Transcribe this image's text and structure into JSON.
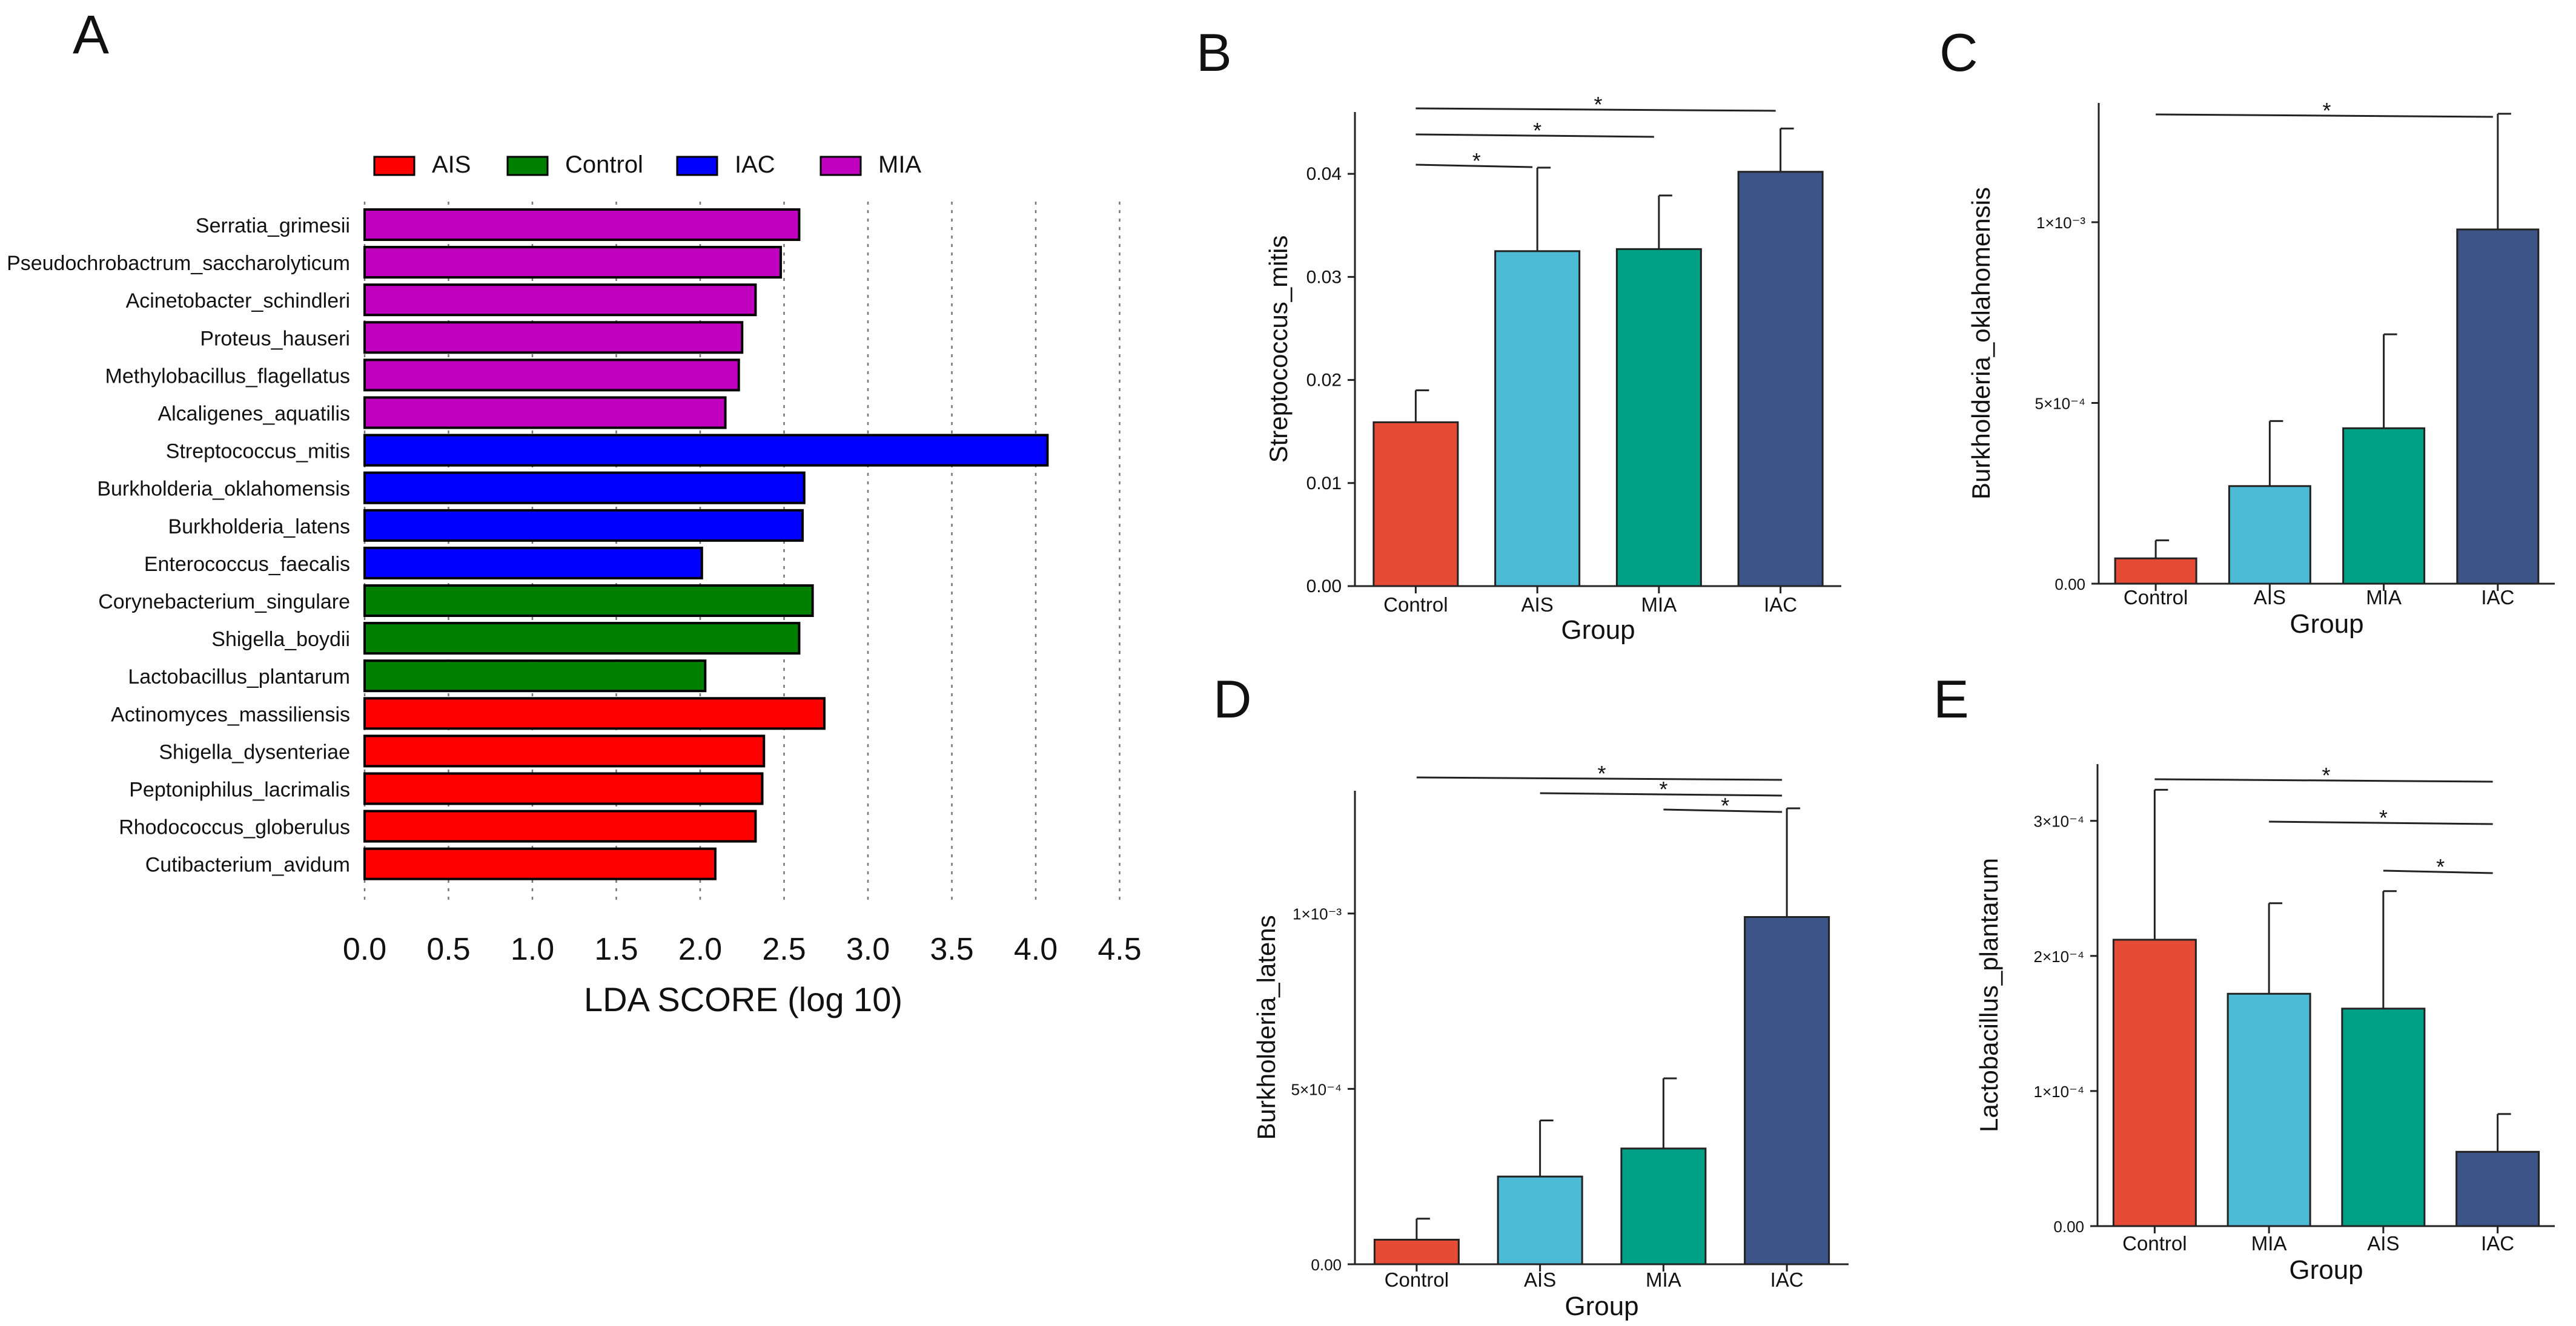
{
  "chart_data": [
    {
      "id": "A",
      "type": "bar",
      "orientation": "horizontal",
      "panel_label": "A",
      "xlabel": "LDA SCORE (log 10)",
      "xlim": [
        0,
        4.5
      ],
      "xticks": [
        "0.0",
        "0.5",
        "1.0",
        "1.5",
        "2.0",
        "2.5",
        "3.0",
        "3.5",
        "4.0",
        "4.5"
      ],
      "legend": [
        {
          "name": "AIS",
          "color": "#ff0000"
        },
        {
          "name": "Control",
          "color": "#008000"
        },
        {
          "name": "IAC",
          "color": "#0000ff"
        },
        {
          "name": "MIA",
          "color": "#bf00bf"
        }
      ],
      "bars": [
        {
          "label": "Serratia_grimesii",
          "value": 2.59,
          "group": "MIA"
        },
        {
          "label": "Pseudochrobactrum_saccharolyticum",
          "value": 2.48,
          "group": "MIA"
        },
        {
          "label": "Acinetobacter_schindleri",
          "value": 2.33,
          "group": "MIA"
        },
        {
          "label": "Proteus_hauseri",
          "value": 2.25,
          "group": "MIA"
        },
        {
          "label": "Methylobacillus_flagellatus",
          "value": 2.23,
          "group": "MIA"
        },
        {
          "label": "Alcaligenes_aquatilis",
          "value": 2.15,
          "group": "MIA"
        },
        {
          "label": "Streptococcus_mitis",
          "value": 4.07,
          "group": "IAC"
        },
        {
          "label": "Burkholderia_oklahomensis",
          "value": 2.62,
          "group": "IAC"
        },
        {
          "label": "Burkholderia_latens",
          "value": 2.61,
          "group": "IAC"
        },
        {
          "label": "Enterococcus_faecalis",
          "value": 2.01,
          "group": "IAC"
        },
        {
          "label": "Corynebacterium_singulare",
          "value": 2.67,
          "group": "Control"
        },
        {
          "label": "Shigella_boydii",
          "value": 2.59,
          "group": "Control"
        },
        {
          "label": "Lactobacillus_plantarum",
          "value": 2.03,
          "group": "Control"
        },
        {
          "label": "Actinomyces_massiliensis",
          "value": 2.74,
          "group": "AIS"
        },
        {
          "label": "Shigella_dysenteriae",
          "value": 2.38,
          "group": "AIS"
        },
        {
          "label": "Peptoniphilus_lacrimalis",
          "value": 2.37,
          "group": "AIS"
        },
        {
          "label": "Rhodococcus_globerulus",
          "value": 2.33,
          "group": "AIS"
        },
        {
          "label": "Cutibacterium_avidum",
          "value": 2.09,
          "group": "AIS"
        }
      ]
    },
    {
      "id": "B",
      "type": "bar",
      "panel_label": "B",
      "ylabel": "Streptococcus_mitis",
      "xlabel": "Group",
      "categories": [
        "Control",
        "AIS",
        "MIA",
        "IAC"
      ],
      "values": [
        0.0159,
        0.0325,
        0.0327,
        0.0402
      ],
      "errors": [
        0.0031,
        0.0081,
        0.0052,
        0.0042
      ],
      "ylim": [
        0,
        0.046
      ],
      "yticks": [
        0,
        0.01,
        0.02,
        0.03,
        0.04
      ],
      "ytick_labels": [
        "0.00",
        "0.01",
        "0.02",
        "0.03",
        "0.04"
      ],
      "significance": [
        {
          "from": 0,
          "to": 1,
          "label": "*"
        },
        {
          "from": 0,
          "to": 2,
          "label": "*"
        },
        {
          "from": 0,
          "to": 3,
          "label": "*"
        }
      ]
    },
    {
      "id": "C",
      "type": "bar",
      "panel_label": "C",
      "ylabel": "Burkholderia_oklahomensis",
      "xlabel": "Group",
      "categories": [
        "Control",
        "AIS",
        "MIA",
        "IAC"
      ],
      "values": [
        7e-05,
        0.00027,
        0.00043,
        0.00098
      ],
      "errors": [
        5e-05,
        0.00018,
        0.00026,
        0.00032
      ],
      "ylim": [
        0,
        0.00133
      ],
      "yticks": [
        0,
        0.0005,
        0.001
      ],
      "ytick_labels": [
        "0.00",
        "5×10⁻⁴",
        "1×10⁻³"
      ],
      "significance": [
        {
          "from": 0,
          "to": 3,
          "label": "*"
        }
      ]
    },
    {
      "id": "D",
      "type": "bar",
      "panel_label": "D",
      "ylabel": "Burkholderia_latens",
      "xlabel": "Group",
      "categories": [
        "Control",
        "AIS",
        "MIA",
        "IAC"
      ],
      "values": [
        7e-05,
        0.00025,
        0.00033,
        0.00099
      ],
      "errors": [
        6e-05,
        0.00016,
        0.0002,
        0.00031
      ],
      "ylim": [
        0,
        0.00135
      ],
      "yticks": [
        0,
        0.0005,
        0.001
      ],
      "ytick_labels": [
        "0.00",
        "5×10⁻⁴",
        "1×10⁻³"
      ],
      "significance": [
        {
          "from": 0,
          "to": 3,
          "label": "*"
        },
        {
          "from": 1,
          "to": 3,
          "label": "*"
        },
        {
          "from": 2,
          "to": 3,
          "label": "*"
        }
      ]
    },
    {
      "id": "E",
      "type": "bar",
      "panel_label": "E",
      "ylabel": "Lactobacillus_plantarum",
      "xlabel": "Group",
      "categories": [
        "Control",
        "MIA",
        "AIS",
        "IAC"
      ],
      "values": [
        0.000212,
        0.000172,
        0.000161,
        5.5e-05
      ],
      "errors": [
        0.000111,
        6.7e-05,
        8.7e-05,
        2.8e-05
      ],
      "ylim": [
        0,
        0.000342
      ],
      "yticks": [
        0,
        0.0001,
        0.0002,
        0.0003
      ],
      "ytick_labels": [
        "0.00",
        "1×10⁻⁴",
        "2×10⁻⁴",
        "3×10⁻⁴"
      ],
      "significance": [
        {
          "from": 0,
          "to": 3,
          "label": "*"
        },
        {
          "from": 1,
          "to": 3,
          "label": "*"
        },
        {
          "from": 2,
          "to": 3,
          "label": "*"
        }
      ]
    }
  ],
  "colors": {
    "bar_palette": [
      "#e64b35",
      "#4dbbd5",
      "#00a087",
      "#3c5488"
    ],
    "axis": "#222222"
  }
}
